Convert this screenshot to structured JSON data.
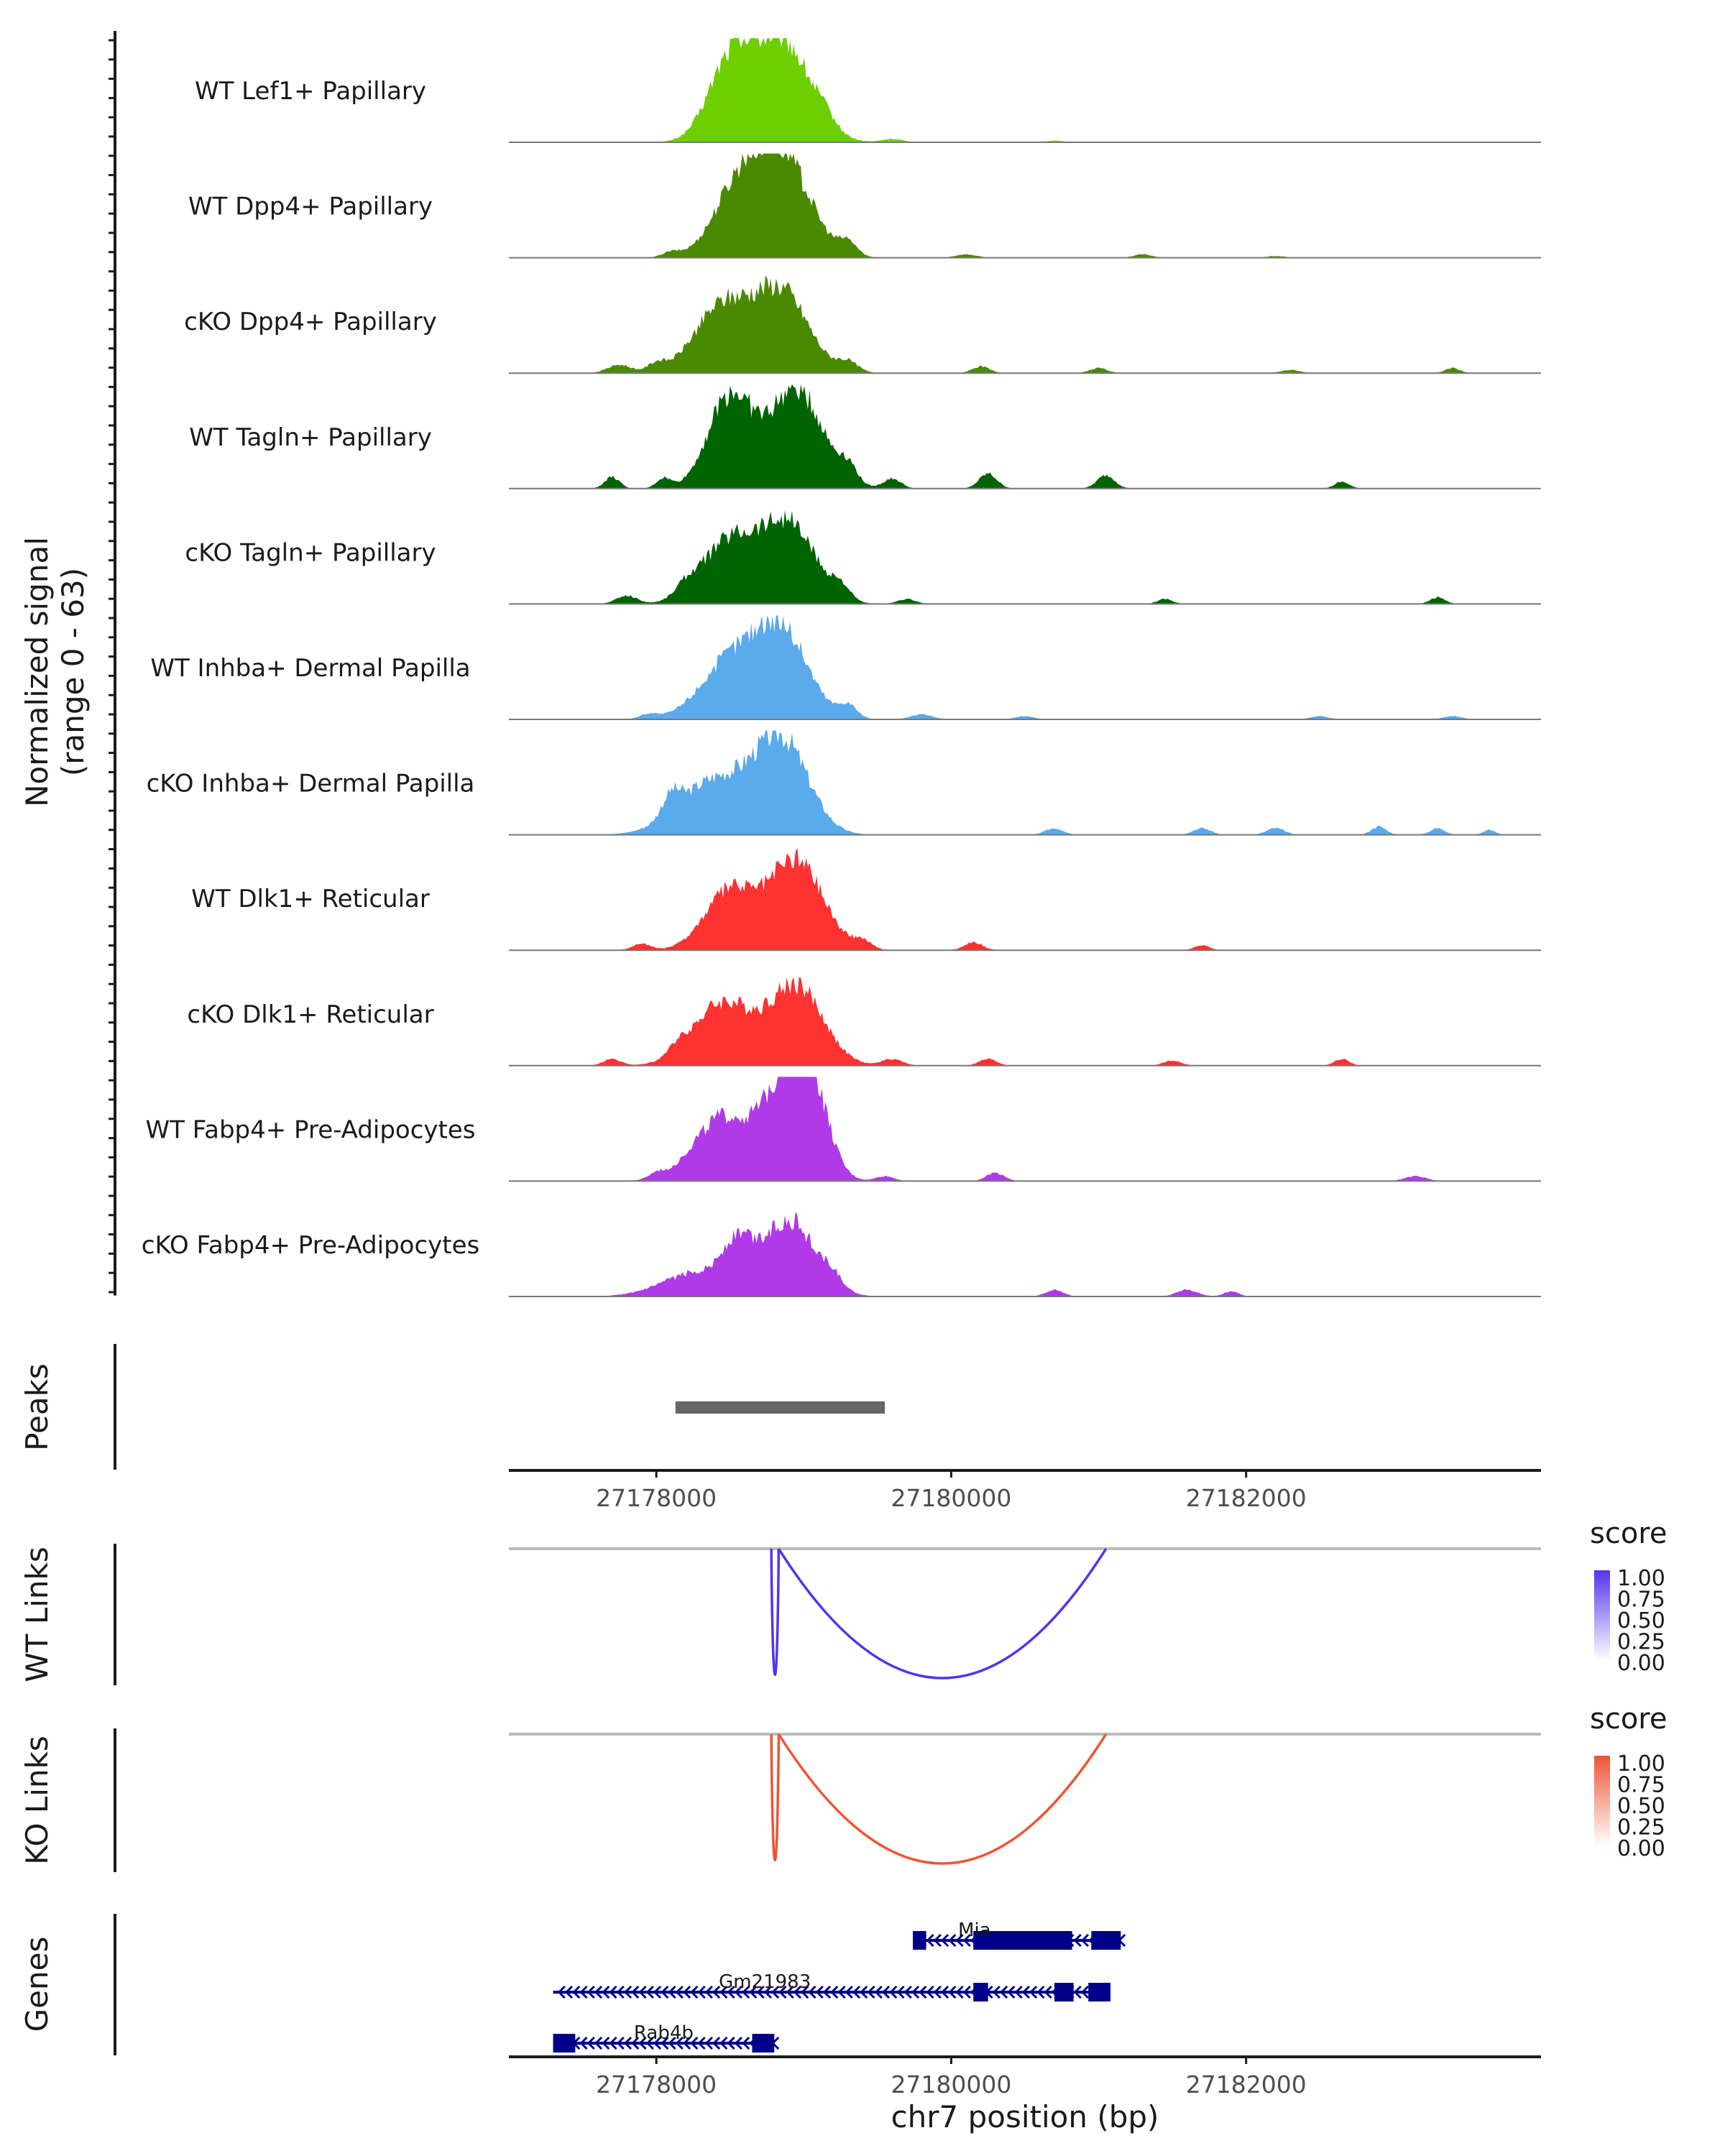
{
  "chart_data": {
    "type": "area",
    "title": "",
    "chrom": "chr7",
    "xlabel": "chr7 position (bp)",
    "xlim": [
      27177000,
      27184000
    ],
    "xticks": [
      27178000,
      27180000,
      27182000
    ],
    "xtick_labels": [
      "27178000",
      "27180000",
      "27182000"
    ],
    "coverage": {
      "ylabel_line1": "Normalized signal",
      "ylabel_line2": "(range 0 - 63)",
      "ylim": [
        0,
        63
      ],
      "tracks": [
        {
          "name": "WT Lef1+ Papillary",
          "color": "#6ecf00",
          "peaks": [
            [
              27178500,
              46,
              150
            ],
            [
              27178850,
              62,
              190
            ],
            [
              27179150,
              5,
              70
            ],
            [
              27179600,
              2,
              70
            ],
            [
              27180700,
              1,
              60
            ]
          ]
        },
        {
          "name": "WT Dpp4+ Papillary",
          "color": "#4a8a00",
          "peaks": [
            [
              27178550,
              37,
              170
            ],
            [
              27178850,
              60,
              190
            ],
            [
              27179300,
              8,
              60
            ],
            [
              27178100,
              3,
              60
            ],
            [
              27180100,
              2,
              70
            ],
            [
              27181300,
              2,
              60
            ],
            [
              27182200,
              1,
              60
            ]
          ]
        },
        {
          "name": "cKO Dpp4+ Papillary",
          "color": "#4a8a00",
          "peaks": [
            [
              27178450,
              40,
              190
            ],
            [
              27178850,
              48,
              180
            ],
            [
              27179300,
              6,
              70
            ],
            [
              27177750,
              5,
              80
            ],
            [
              27178000,
              5,
              60
            ],
            [
              27180200,
              4,
              60
            ],
            [
              27181000,
              3,
              60
            ],
            [
              27182300,
              2,
              60
            ],
            [
              27183400,
              3,
              50
            ]
          ]
        },
        {
          "name": "WT Tagln+ Papillary",
          "color": "#006400",
          "peaks": [
            [
              27178500,
              56,
              150
            ],
            [
              27178950,
              60,
              180
            ],
            [
              27179300,
              10,
              60
            ],
            [
              27177700,
              7,
              50
            ],
            [
              27178050,
              6,
              50
            ],
            [
              27179600,
              6,
              60
            ],
            [
              27180250,
              9,
              60
            ],
            [
              27181050,
              8,
              60
            ],
            [
              27182650,
              4,
              50
            ]
          ]
        },
        {
          "name": "cKO Tagln+ Papillary",
          "color": "#006400",
          "peaks": [
            [
              27178500,
              38,
              190
            ],
            [
              27178900,
              47,
              180
            ],
            [
              27179250,
              8,
              60
            ],
            [
              27177800,
              5,
              70
            ],
            [
              27178200,
              6,
              70
            ],
            [
              27179700,
              3,
              60
            ],
            [
              27181450,
              3,
              50
            ],
            [
              27183300,
              4,
              50
            ]
          ]
        },
        {
          "name": "WT Inhba+ Dermal Papilla",
          "color": "#5aaaec",
          "peaks": [
            [
              27178500,
              34,
              200
            ],
            [
              27178850,
              52,
              180
            ],
            [
              27179300,
              8,
              60
            ],
            [
              27177950,
              3,
              60
            ],
            [
              27179800,
              3,
              70
            ],
            [
              27180500,
              2,
              60
            ],
            [
              27182500,
              2,
              60
            ],
            [
              27183400,
              2,
              60
            ]
          ]
        },
        {
          "name": "cKO Inhba+ Dermal Papilla",
          "color": "#5aaaec",
          "peaks": [
            [
              27178400,
              33,
              240
            ],
            [
              27178850,
              55,
              180
            ],
            [
              27178100,
              12,
              60
            ],
            [
              27180700,
              4,
              60
            ],
            [
              27181700,
              4,
              60
            ],
            [
              27182200,
              4,
              60
            ],
            [
              27182900,
              5,
              50
            ],
            [
              27183300,
              4,
              50
            ],
            [
              27183650,
              3,
              40
            ]
          ]
        },
        {
          "name": "WT Dlk1+ Reticular",
          "color": "#ff3131",
          "peaks": [
            [
              27178500,
              36,
              170
            ],
            [
              27178950,
              55,
              180
            ],
            [
              27179400,
              5,
              60
            ],
            [
              27177900,
              4,
              60
            ],
            [
              27180150,
              5,
              60
            ],
            [
              27181700,
              3,
              50
            ]
          ]
        },
        {
          "name": "cKO Dlk1+ Reticular",
          "color": "#ff3131",
          "peaks": [
            [
              27178450,
              38,
              200
            ],
            [
              27178950,
              48,
              180
            ],
            [
              27179600,
              4,
              70
            ],
            [
              27177700,
              4,
              60
            ],
            [
              27178150,
              5,
              60
            ],
            [
              27180250,
              4,
              60
            ],
            [
              27181500,
              3,
              60
            ],
            [
              27182650,
              4,
              50
            ]
          ]
        },
        {
          "name": "WT Fabp4+ Pre-Adipocytes",
          "color": "#b03ae8",
          "peaks": [
            [
              27178450,
              38,
              200
            ],
            [
              27178900,
              60,
              160
            ],
            [
              27179050,
              35,
              120
            ],
            [
              27178000,
              3,
              50
            ],
            [
              27179550,
              3,
              60
            ],
            [
              27180300,
              5,
              60
            ],
            [
              27183150,
              3,
              70
            ]
          ]
        },
        {
          "name": "cKO Fabp4+ Pre-Adipocytes",
          "color": "#b03ae8",
          "peaks": [
            [
              27178300,
              15,
              240
            ],
            [
              27178550,
              22,
              100
            ],
            [
              27178900,
              46,
              180
            ],
            [
              27179200,
              6,
              60
            ],
            [
              27180700,
              4,
              60
            ],
            [
              27181600,
              4,
              70
            ],
            [
              27181900,
              3,
              50
            ]
          ]
        }
      ]
    },
    "peaks_track": {
      "ylabel": "Peaks",
      "regions": [
        [
          27178130,
          27179550
        ]
      ]
    },
    "links": [
      {
        "ylabel": "WT Links",
        "color": "#5533ee",
        "legend_title": "score",
        "legend_values": [
          "1.00",
          "0.75",
          "0.50",
          "0.25",
          "0.00"
        ],
        "arcs": [
          [
            27178780,
            27178830,
            0.85
          ],
          [
            27178830,
            27181050,
            0.82
          ]
        ]
      },
      {
        "ylabel": "KO Links",
        "color": "#ee5533",
        "legend_title": "score",
        "legend_values": [
          "1.00",
          "0.75",
          "0.50",
          "0.25",
          "0.00"
        ],
        "arcs": [
          [
            27178780,
            27178830,
            0.85
          ],
          [
            27178830,
            27181050,
            0.82
          ]
        ]
      }
    ],
    "genes": {
      "ylabel": "Genes",
      "color": "#00008b",
      "items": [
        {
          "name": "Mia",
          "start": 27179750,
          "end": 27181150,
          "row": 0,
          "exons": [
            [
              27179740,
              27179830
            ],
            [
              27180150,
              27180820
            ],
            [
              27180950,
              27181150
            ]
          ]
        },
        {
          "name": "Gm21983",
          "start": 27177300,
          "end": 27181050,
          "row": 1,
          "exons": [
            [
              27180150,
              27180250
            ],
            [
              27180700,
              27180830
            ],
            [
              27180930,
              27181080
            ]
          ]
        },
        {
          "name": "Rab4b",
          "start": 27177300,
          "end": 27178800,
          "row": 2,
          "exons": [
            [
              27177300,
              27177450
            ],
            [
              27178650,
              27178800
            ]
          ]
        }
      ]
    }
  }
}
